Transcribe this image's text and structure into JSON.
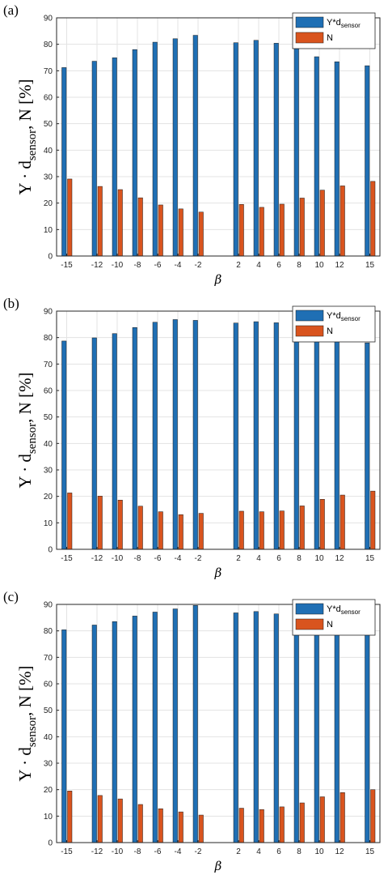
{
  "colors": {
    "series1": "#1f6fb4",
    "series2": "#d9541e",
    "axis": "#262626",
    "grid": "#e3e3e3"
  },
  "chart_data": [
    {
      "type": "bar",
      "panel_label": "(a)",
      "xlabel": "β",
      "ylabel": {
        "main": "Y · d",
        "sub": "sensor",
        "rest": ", N [%]"
      },
      "ylim": [
        0,
        90
      ],
      "yticks": [
        0,
        10,
        20,
        30,
        40,
        50,
        60,
        70,
        80,
        90
      ],
      "xlim": [
        -16,
        16
      ],
      "grid": true,
      "legend_position": "top-right",
      "x": [
        -15,
        -12,
        -10,
        -8,
        -6,
        -4,
        -2,
        2,
        4,
        6,
        8,
        10,
        12,
        15
      ],
      "series": [
        {
          "name": "Y*d",
          "name_sub": "sensor",
          "values": [
            71.2,
            73.6,
            74.9,
            78.0,
            80.8,
            82.1,
            83.4,
            80.6,
            81.5,
            80.4,
            78.3,
            75.3,
            73.4,
            71.9
          ]
        },
        {
          "name": "N",
          "values": [
            29.1,
            26.3,
            25.1,
            22.0,
            19.3,
            17.8,
            16.6,
            19.5,
            18.4,
            19.6,
            21.9,
            24.9,
            26.5,
            28.2
          ]
        }
      ]
    },
    {
      "type": "bar",
      "panel_label": "(b)",
      "xlabel": "β",
      "ylabel": {
        "main": "Y · d",
        "sub": "sensor",
        "rest": ", N [%]"
      },
      "ylim": [
        0,
        90
      ],
      "yticks": [
        0,
        10,
        20,
        30,
        40,
        50,
        60,
        70,
        80,
        90
      ],
      "xlim": [
        -16,
        16
      ],
      "grid": true,
      "legend_position": "top-right",
      "x": [
        -15,
        -12,
        -10,
        -8,
        -6,
        -4,
        -2,
        2,
        4,
        6,
        8,
        10,
        12,
        15
      ],
      "series": [
        {
          "name": "Y*d",
          "name_sub": "sensor",
          "values": [
            78.7,
            79.9,
            81.5,
            83.8,
            85.8,
            86.8,
            86.5,
            85.5,
            86.0,
            85.6,
            83.7,
            81.2,
            79.6,
            78.0
          ]
        },
        {
          "name": "N",
          "values": [
            21.3,
            20.1,
            18.6,
            16.3,
            14.2,
            13.1,
            13.6,
            14.4,
            14.2,
            14.5,
            16.4,
            18.9,
            20.5,
            22.0
          ]
        }
      ]
    },
    {
      "type": "bar",
      "panel_label": "(c)",
      "xlabel": "β",
      "ylabel": {
        "main": "Y · d",
        "sub": "sensor",
        "rest": ", N [%]"
      },
      "ylim": [
        0,
        90
      ],
      "yticks": [
        0,
        10,
        20,
        30,
        40,
        50,
        60,
        70,
        80,
        90
      ],
      "xlim": [
        -16,
        16
      ],
      "grid": true,
      "legend_position": "top-right",
      "x": [
        -15,
        -12,
        -10,
        -8,
        -6,
        -4,
        -2,
        2,
        4,
        6,
        8,
        10,
        12,
        15
      ],
      "series": [
        {
          "name": "Y*d",
          "name_sub": "sensor",
          "values": [
            80.4,
            82.2,
            83.5,
            85.6,
            87.1,
            88.3,
            89.6,
            86.8,
            87.3,
            86.4,
            84.9,
            82.8,
            81.0,
            80.0
          ]
        },
        {
          "name": "N",
          "values": [
            19.5,
            17.8,
            16.5,
            14.4,
            12.8,
            11.6,
            10.4,
            13.0,
            12.5,
            13.5,
            15.0,
            17.3,
            18.9,
            20.0
          ]
        }
      ]
    }
  ]
}
